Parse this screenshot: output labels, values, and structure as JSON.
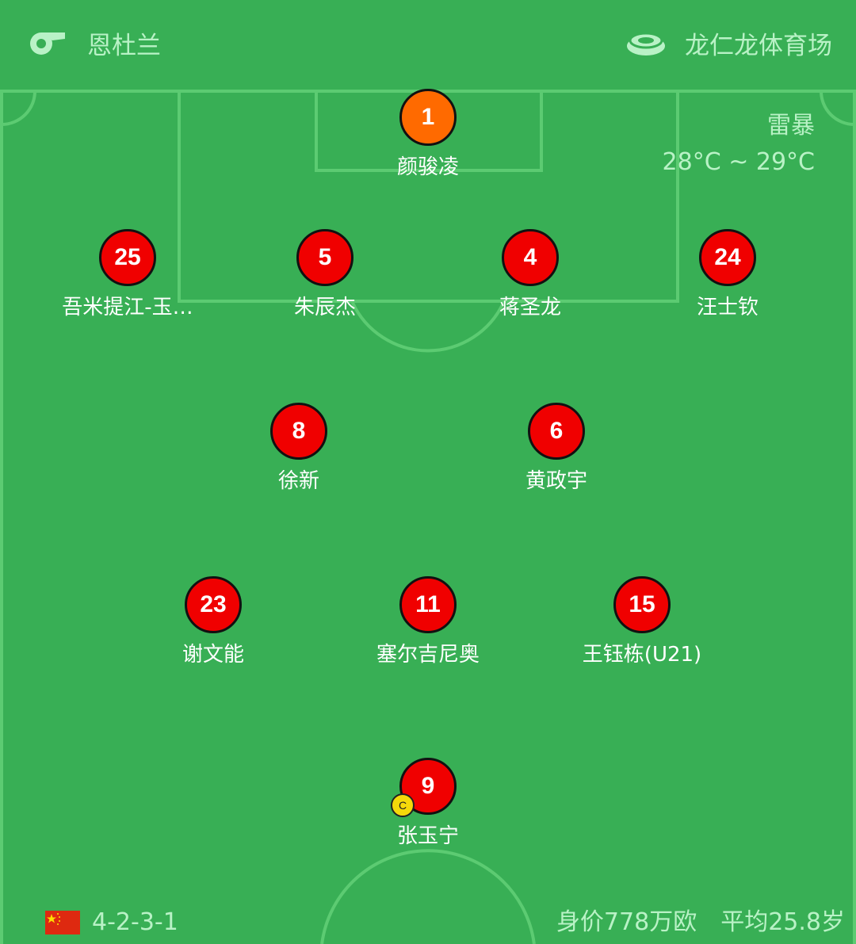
{
  "header": {
    "referee_icon": "whistle-icon",
    "referee": "恩杜兰",
    "venue_icon": "stadium-icon",
    "venue": "龙仁龙体育场"
  },
  "weather": {
    "condition": "雷暴",
    "temperature": "28°C ~ 29°C"
  },
  "colors": {
    "pitch": "#38af55",
    "goalkeeper": "#ff6a00",
    "outfield": "#f00000",
    "captain": "#f5d90a",
    "info_text": "#b9f2c6"
  },
  "players": [
    {
      "number": "1",
      "name": "颜骏凌",
      "role": "goalkeeper"
    },
    {
      "number": "25",
      "name": "吾米提江-玉…"
    },
    {
      "number": "5",
      "name": "朱辰杰"
    },
    {
      "number": "4",
      "name": "蒋圣龙"
    },
    {
      "number": "24",
      "name": "汪士钦"
    },
    {
      "number": "8",
      "name": "徐新"
    },
    {
      "number": "6",
      "name": "黄政宇"
    },
    {
      "number": "23",
      "name": "谢文能"
    },
    {
      "number": "11",
      "name": "塞尔吉尼奥"
    },
    {
      "number": "15",
      "name": "王钰栋(U21)"
    },
    {
      "number": "9",
      "name": "张玉宁",
      "captain": "C"
    }
  ],
  "footer": {
    "flag_icon": "china-flag-icon",
    "formation": "4-2-3-1",
    "market_value": "身价778万欧",
    "average_age": "平均25.8岁"
  }
}
